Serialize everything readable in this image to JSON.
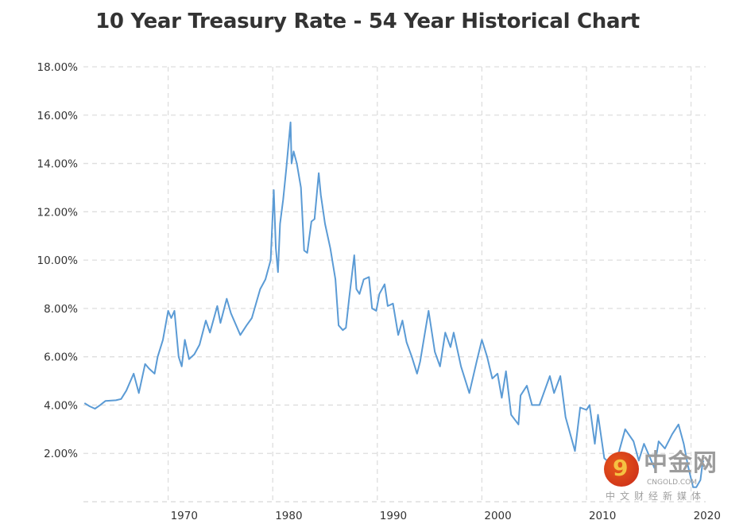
{
  "chart_data": {
    "type": "line",
    "title": "10 Year Treasury Rate - 54 Year Historical Chart",
    "xlabel": "",
    "ylabel": "",
    "xlim": [
      1961.9,
      2021.4
    ],
    "ylim": [
      0,
      18
    ],
    "grid": true,
    "line_color": "#5b9bd5",
    "x_ticks": [
      1970,
      1980,
      1990,
      2000,
      2010,
      2020
    ],
    "x_tick_labels": [
      "1970",
      "1980",
      "1990",
      "2000",
      "2010",
      "2020"
    ],
    "y_ticks": [
      2,
      4,
      6,
      8,
      10,
      12,
      14,
      16,
      18
    ],
    "y_tick_labels": [
      "2.00%",
      "4.00%",
      "6.00%",
      "8.00%",
      "10.00%",
      "12.00%",
      "14.00%",
      "16.00%",
      "18.00%"
    ],
    "series": [
      {
        "x": [
          1962.0,
          1962.5,
          1963.0,
          1963.5,
          1964.0,
          1965.0,
          1965.5,
          1966.0,
          1966.7,
          1967.2,
          1967.8,
          1968.2,
          1968.7,
          1969.0,
          1969.5,
          1970.0,
          1970.3,
          1970.6,
          1971.0,
          1971.3,
          1971.6,
          1972.0,
          1972.5,
          1973.0,
          1973.6,
          1974.0,
          1974.7,
          1975.0,
          1975.6,
          1976.0,
          1976.9,
          1977.5,
          1978.0,
          1978.8,
          1979.3,
          1979.8,
          1980.1,
          1980.3,
          1980.5,
          1980.7,
          1981.0,
          1981.3,
          1981.7,
          1981.8,
          1982.0,
          1982.3,
          1982.7,
          1983.0,
          1983.3,
          1983.7,
          1984.0,
          1984.4,
          1984.6,
          1985.0,
          1985.5,
          1986.0,
          1986.3,
          1986.7,
          1987.0,
          1987.3,
          1987.8,
          1988.0,
          1988.3,
          1988.7,
          1989.2,
          1989.5,
          1989.9,
          1990.2,
          1990.7,
          1991.0,
          1991.5,
          1992.0,
          1992.4,
          1992.8,
          1993.3,
          1993.8,
          1994.1,
          1994.9,
          1995.5,
          1996.0,
          1996.5,
          1997.0,
          1997.3,
          1998.0,
          1998.8,
          1999.5,
          2000.0,
          2000.5,
          2001.0,
          2001.5,
          2001.9,
          2002.3,
          2002.8,
          2003.5,
          2003.7,
          2004.3,
          2004.8,
          2005.5,
          2006.5,
          2006.9,
          2007.5,
          2008.0,
          2008.9,
          2009.4,
          2010.0,
          2010.3,
          2010.8,
          2011.1,
          2011.7,
          2012.5,
          2013.0,
          2013.7,
          2014.5,
          2015.0,
          2015.5,
          2016.5,
          2016.9,
          2017.5,
          2018.2,
          2018.8,
          2019.3,
          2019.7,
          2020.2,
          2020.5,
          2020.9,
          2021.1,
          2021.2
        ],
        "y": [
          4.08,
          3.95,
          3.85,
          4.0,
          4.17,
          4.2,
          4.25,
          4.6,
          5.3,
          4.5,
          5.7,
          5.5,
          5.3,
          6.0,
          6.7,
          7.9,
          7.6,
          7.9,
          6.0,
          5.6,
          6.7,
          5.9,
          6.1,
          6.5,
          7.5,
          7.0,
          8.1,
          7.4,
          8.4,
          7.8,
          6.9,
          7.3,
          7.6,
          8.8,
          9.2,
          10.0,
          12.9,
          10.5,
          9.5,
          11.5,
          12.5,
          13.8,
          15.7,
          14.0,
          14.5,
          14.0,
          13.0,
          10.4,
          10.3,
          11.6,
          11.7,
          13.6,
          12.7,
          11.5,
          10.5,
          9.2,
          7.3,
          7.1,
          7.2,
          8.4,
          10.2,
          8.8,
          8.6,
          9.2,
          9.3,
          8.0,
          7.9,
          8.6,
          9.0,
          8.1,
          8.2,
          6.9,
          7.5,
          6.6,
          6.0,
          5.3,
          5.8,
          7.9,
          6.2,
          5.6,
          7.0,
          6.4,
          7.0,
          5.6,
          4.5,
          5.8,
          6.7,
          6.0,
          5.1,
          5.3,
          4.3,
          5.4,
          3.6,
          3.2,
          4.4,
          4.8,
          4.0,
          4.0,
          5.2,
          4.5,
          5.2,
          3.5,
          2.1,
          3.9,
          3.8,
          4.0,
          2.4,
          3.6,
          1.8,
          1.5,
          1.9,
          3.0,
          2.5,
          1.7,
          2.4,
          1.4,
          2.5,
          2.2,
          2.8,
          3.2,
          2.4,
          1.5,
          0.6,
          0.6,
          0.9,
          1.6,
          1.7
        ]
      }
    ]
  },
  "watermark": {
    "brand": "中金网",
    "site": "CNGOLD.COM",
    "tagline": "中文财经新媒体"
  }
}
